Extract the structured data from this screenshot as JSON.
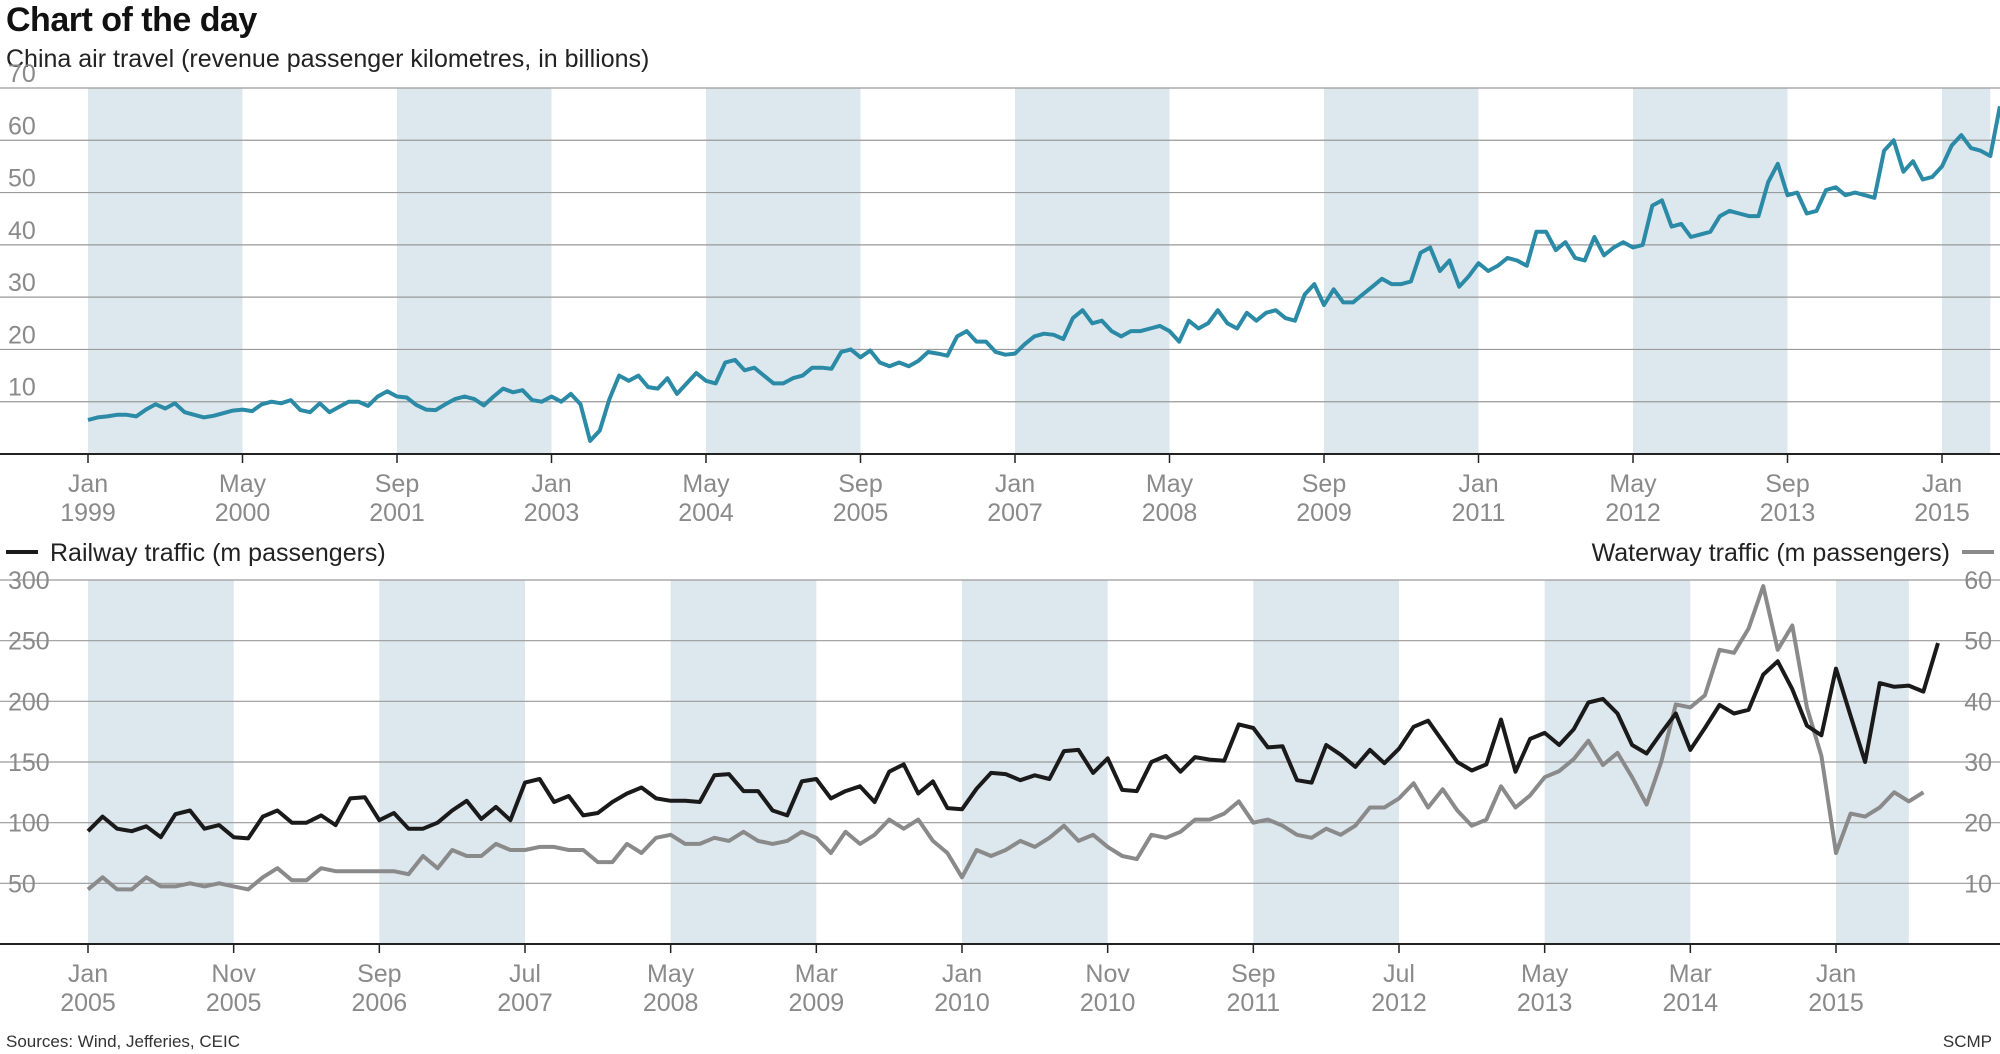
{
  "header": {
    "title": "Chart of the day",
    "subtitle": "China air travel (revenue passenger kilometres, in billions)"
  },
  "footer": {
    "source": "Sources: Wind, Jefferies, CEIC",
    "credit": "SCMP"
  },
  "colors": {
    "air": "#2b8aa6",
    "railway": "#1a1a1a",
    "waterway": "#8a8a8a",
    "band": "#dde7ee",
    "grid": "#9a9a9a",
    "tick_text": "#8a8a8a"
  },
  "chart_data": [
    {
      "type": "line",
      "title": "China air travel (revenue passenger kilometres, in billions)",
      "x_start": "1999-01",
      "x_end": "2015-06",
      "ylim": [
        0,
        70
      ],
      "yticks": [
        10,
        20,
        30,
        40,
        50,
        60,
        70
      ],
      "grid": true,
      "x_tick_labels": [
        {
          "month": "Jan",
          "year": "1999"
        },
        {
          "month": "May",
          "year": "2000"
        },
        {
          "month": "Sep",
          "year": "2001"
        },
        {
          "month": "Jan",
          "year": "2003"
        },
        {
          "month": "May",
          "year": "2004"
        },
        {
          "month": "Sep",
          "year": "2005"
        },
        {
          "month": "Jan",
          "year": "2007"
        },
        {
          "month": "May",
          "year": "2008"
        },
        {
          "month": "Sep",
          "year": "2009"
        },
        {
          "month": "Jan",
          "year": "2011"
        },
        {
          "month": "May",
          "year": "2012"
        },
        {
          "month": "Sep",
          "year": "2013"
        },
        {
          "month": "Jan",
          "year": "2015"
        }
      ],
      "shaded_bands": [
        [
          "1999-01",
          "2000-05"
        ],
        [
          "2001-09",
          "2003-01"
        ],
        [
          "2004-05",
          "2005-09"
        ],
        [
          "2007-01",
          "2008-05"
        ],
        [
          "2009-09",
          "2011-01"
        ],
        [
          "2012-05",
          "2013-09"
        ],
        [
          "2015-01",
          "2015-06"
        ]
      ],
      "series": [
        {
          "name": "",
          "monthly_values": [
            6.5,
            7,
            7.2,
            7.5,
            7.5,
            7.2,
            8.5,
            9.5,
            8.7,
            9.7,
            8,
            7.5,
            7,
            7.3,
            7.8,
            8.3,
            8.5,
            8.2,
            9.5,
            10,
            9.7,
            10.3,
            8.4,
            8,
            9.7,
            8,
            9,
            10,
            10,
            9.2,
            11,
            12,
            11,
            10.8,
            9.4,
            8.5,
            8.4,
            9.5,
            10.5,
            11,
            10.5,
            9.3,
            11,
            12.5,
            11.8,
            12.2,
            10.3,
            10,
            11,
            10,
            11.5,
            9.5,
            2.5,
            4.5,
            10.5,
            15,
            14,
            15,
            12.8,
            12.5,
            14.5,
            11.5,
            13.5,
            15.5,
            14,
            13.5,
            17.5,
            18,
            16,
            16.5,
            15,
            13.5,
            13.5,
            14.5,
            15,
            16.5,
            16.5,
            16.3,
            19.5,
            20,
            18.5,
            19.8,
            17.5,
            16.8,
            17.5,
            16.8,
            17.8,
            19.5,
            19.2,
            18.8,
            22.5,
            23.5,
            21.5,
            21.5,
            19.5,
            19,
            19.2,
            21,
            22.5,
            23,
            22.8,
            22,
            26,
            27.5,
            25,
            25.5,
            23.5,
            22.5,
            23.5,
            23.5,
            24,
            24.5,
            23.5,
            21.5,
            25.5,
            24,
            25,
            27.5,
            25,
            24,
            27,
            25.5,
            27,
            27.5,
            26,
            25.5,
            30.5,
            32.5,
            28.5,
            31.5,
            29,
            29,
            30.5,
            32,
            33.5,
            32.5,
            32.5,
            33,
            38.5,
            39.5,
            35,
            37,
            32,
            34,
            36.5,
            35,
            36,
            37.5,
            37,
            36,
            42.5,
            42.5,
            39,
            40.5,
            37.5,
            37,
            41.5,
            38,
            39.5,
            40.5,
            39.5,
            40,
            47.5,
            48.5,
            43.5,
            44,
            41.5,
            42,
            42.5,
            45.5,
            46.5,
            46,
            45.5,
            45.5,
            52,
            55.5,
            49.5,
            50,
            46,
            46.5,
            50.5,
            51,
            49.5,
            50,
            49.5,
            49,
            58,
            60,
            54,
            56,
            52.5,
            53,
            55,
            59,
            61,
            58.5,
            58,
            57,
            66.5
          ]
        }
      ]
    },
    {
      "type": "line",
      "title": "",
      "x_start": "2005-01",
      "x_end": "2015-06",
      "ylim_left": [
        0,
        300
      ],
      "yticks_left": [
        50,
        100,
        150,
        200,
        250,
        300
      ],
      "ylim_right": [
        0,
        60
      ],
      "yticks_right": [
        10,
        20,
        30,
        40,
        50,
        60
      ],
      "grid": true,
      "legend": [
        {
          "label": "Railway traffic (m passengers)",
          "position": "top-left",
          "axis": "left"
        },
        {
          "label": "Waterway traffic (m passengers)",
          "position": "top-right",
          "axis": "right"
        }
      ],
      "x_tick_labels": [
        {
          "month": "Jan",
          "year": "2005"
        },
        {
          "month": "Nov",
          "year": "2005"
        },
        {
          "month": "Sep",
          "year": "2006"
        },
        {
          "month": "Jul",
          "year": "2007"
        },
        {
          "month": "May",
          "year": "2008"
        },
        {
          "month": "Mar",
          "year": "2009"
        },
        {
          "month": "Jan",
          "year": "2010"
        },
        {
          "month": "Nov",
          "year": "2010"
        },
        {
          "month": "Sep",
          "year": "2011"
        },
        {
          "month": "Jul",
          "year": "2012"
        },
        {
          "month": "May",
          "year": "2013"
        },
        {
          "month": "Mar",
          "year": "2014"
        },
        {
          "month": "Jan",
          "year": "2015"
        }
      ],
      "shaded_bands": [
        [
          "2005-01",
          "2005-11"
        ],
        [
          "2006-09",
          "2007-07"
        ],
        [
          "2008-05",
          "2009-03"
        ],
        [
          "2010-01",
          "2010-11"
        ],
        [
          "2011-09",
          "2012-07"
        ],
        [
          "2013-05",
          "2014-03"
        ],
        [
          "2015-01",
          "2015-06"
        ]
      ],
      "series": [
        {
          "name": "Railway traffic (m passengers)",
          "axis": "left",
          "monthly_values": [
            93,
            105,
            95,
            93,
            97,
            88,
            107,
            110,
            95,
            98,
            88,
            87,
            105,
            110,
            100,
            100,
            106,
            98,
            120,
            121,
            102,
            108,
            95,
            95,
            100,
            110,
            118,
            103,
            113,
            102,
            133,
            136,
            117,
            122,
            106,
            108,
            117,
            124,
            129,
            120,
            118,
            118,
            117,
            139,
            140,
            126,
            126,
            110,
            106,
            134,
            136,
            120,
            126,
            130,
            117,
            142,
            148,
            124,
            134,
            112,
            111,
            128,
            141,
            140,
            135,
            139,
            136,
            159,
            160,
            141,
            153,
            127,
            126,
            150,
            155,
            142,
            154,
            152,
            151,
            181,
            178,
            162,
            163,
            135,
            133,
            164,
            156,
            146,
            160,
            149,
            161,
            179,
            184,
            167,
            150,
            143,
            148,
            185,
            142,
            169,
            174,
            164,
            177,
            199,
            202,
            190,
            164,
            157,
            174,
            190,
            160,
            178,
            197,
            190,
            193,
            222,
            233,
            210,
            180,
            172,
            227,
            188,
            150,
            215,
            212,
            213,
            208,
            248
          ]
        },
        {
          "name": "Waterway traffic (m passengers)",
          "axis": "right",
          "monthly_values": [
            9,
            11,
            9,
            9,
            11,
            9.5,
            9.5,
            10,
            9.5,
            10,
            9.5,
            9,
            11,
            12.5,
            10.5,
            10.5,
            12.5,
            12,
            12,
            12,
            12,
            12,
            11.5,
            14.5,
            12.5,
            15.5,
            14.5,
            14.5,
            16.5,
            15.5,
            15.5,
            16,
            16,
            15.5,
            15.5,
            13.5,
            13.5,
            16.5,
            15,
            17.5,
            18,
            16.5,
            16.5,
            17.5,
            17,
            18.5,
            17,
            16.5,
            17,
            18.5,
            17.5,
            15,
            18.5,
            16.5,
            18,
            20.5,
            19,
            20.5,
            17,
            15,
            11,
            15.5,
            14.5,
            15.5,
            17,
            16,
            17.5,
            19.5,
            17,
            18,
            16,
            14.5,
            14,
            18,
            17.5,
            18.5,
            20.5,
            20.5,
            21.5,
            23.5,
            20,
            20.5,
            19.5,
            18,
            17.5,
            19,
            18,
            19.5,
            22.5,
            22.5,
            24,
            26.5,
            22.5,
            25.5,
            22,
            19.5,
            20.5,
            26,
            22.5,
            24.5,
            27.5,
            28.5,
            30.5,
            33.5,
            29.5,
            31.5,
            27.5,
            23,
            30,
            39.5,
            39,
            41,
            48.5,
            48,
            52,
            59,
            48.5,
            52.5,
            39,
            31,
            15,
            21.5,
            21,
            22.5,
            25,
            23.5,
            25
          ]
        }
      ]
    }
  ]
}
